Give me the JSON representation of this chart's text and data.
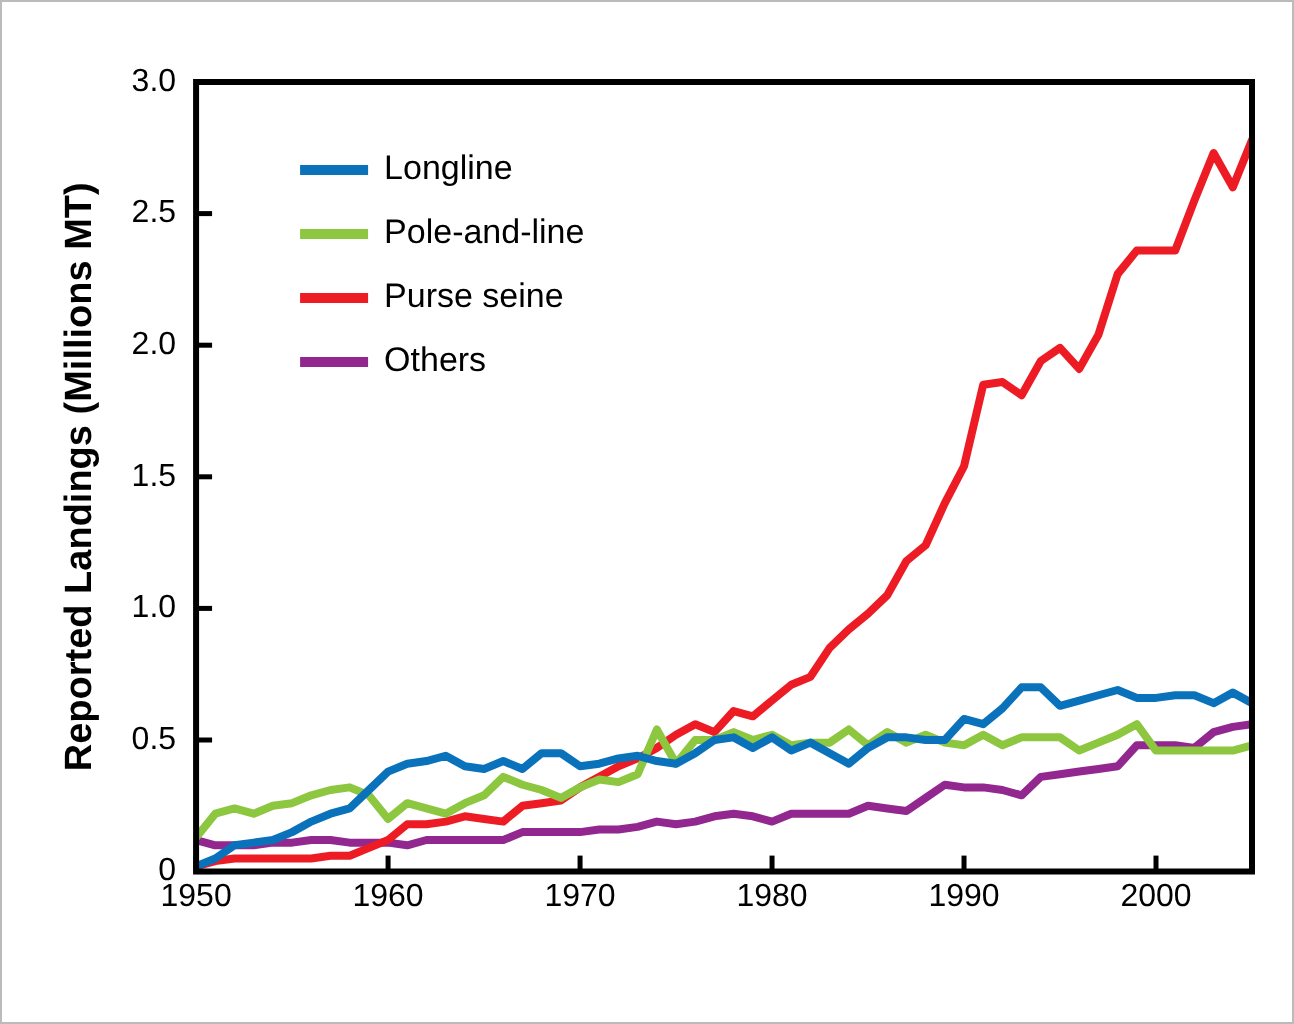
{
  "chart_data": {
    "type": "line",
    "ylabel": "Reported Landings (Millions MT)",
    "x": [
      1950,
      1951,
      1952,
      1953,
      1954,
      1955,
      1956,
      1957,
      1958,
      1959,
      1960,
      1961,
      1962,
      1963,
      1964,
      1965,
      1966,
      1967,
      1968,
      1969,
      1970,
      1971,
      1972,
      1973,
      1974,
      1975,
      1976,
      1977,
      1978,
      1979,
      1980,
      1981,
      1982,
      1983,
      1984,
      1985,
      1986,
      1987,
      1988,
      1989,
      1990,
      1991,
      1992,
      1993,
      1994,
      1995,
      1996,
      1997,
      1998,
      1999,
      2000,
      2001,
      2002,
      2003,
      2004,
      2005
    ],
    "series": [
      {
        "name": "Longline",
        "color": "#0a72ba",
        "values": [
          0.02,
          0.05,
          0.1,
          0.11,
          0.12,
          0.15,
          0.19,
          0.22,
          0.24,
          0.31,
          0.38,
          0.41,
          0.42,
          0.44,
          0.4,
          0.39,
          0.42,
          0.39,
          0.45,
          0.45,
          0.4,
          0.41,
          0.43,
          0.44,
          0.42,
          0.41,
          0.45,
          0.5,
          0.51,
          0.47,
          0.51,
          0.46,
          0.49,
          0.45,
          0.41,
          0.47,
          0.51,
          0.51,
          0.5,
          0.5,
          0.58,
          0.56,
          0.62,
          0.7,
          0.7,
          0.63,
          0.65,
          0.67,
          0.69,
          0.66,
          0.66,
          0.67,
          0.67,
          0.64,
          0.68,
          0.64
        ]
      },
      {
        "name": "Pole-and-line",
        "color": "#8dc63f",
        "values": [
          0.13,
          0.22,
          0.24,
          0.22,
          0.25,
          0.26,
          0.29,
          0.31,
          0.32,
          0.29,
          0.2,
          0.26,
          0.24,
          0.22,
          0.26,
          0.29,
          0.36,
          0.33,
          0.31,
          0.28,
          0.32,
          0.35,
          0.34,
          0.37,
          0.54,
          0.41,
          0.5,
          0.5,
          0.53,
          0.5,
          0.52,
          0.48,
          0.49,
          0.49,
          0.54,
          0.48,
          0.53,
          0.49,
          0.52,
          0.49,
          0.48,
          0.52,
          0.48,
          0.51,
          0.51,
          0.51,
          0.46,
          0.49,
          0.52,
          0.56,
          0.46,
          0.46,
          0.46,
          0.46,
          0.46,
          0.48
        ]
      },
      {
        "name": "Purse seine",
        "color": "#ed1c24",
        "values": [
          0.02,
          0.04,
          0.05,
          0.05,
          0.05,
          0.05,
          0.05,
          0.06,
          0.06,
          0.09,
          0.12,
          0.18,
          0.18,
          0.19,
          0.21,
          0.2,
          0.19,
          0.25,
          0.26,
          0.27,
          0.32,
          0.36,
          0.4,
          0.43,
          0.47,
          0.52,
          0.56,
          0.53,
          0.61,
          0.59,
          0.65,
          0.71,
          0.74,
          0.85,
          0.92,
          0.98,
          1.05,
          1.18,
          1.24,
          1.4,
          1.54,
          1.85,
          1.86,
          1.81,
          1.94,
          1.99,
          1.91,
          2.04,
          2.27,
          2.36,
          2.36,
          2.36,
          2.55,
          2.73,
          2.6,
          2.78
        ]
      },
      {
        "name": "Others",
        "color": "#92278f",
        "values": [
          0.12,
          0.1,
          0.1,
          0.1,
          0.11,
          0.11,
          0.12,
          0.12,
          0.11,
          0.11,
          0.11,
          0.1,
          0.12,
          0.12,
          0.12,
          0.12,
          0.12,
          0.15,
          0.15,
          0.15,
          0.15,
          0.16,
          0.16,
          0.17,
          0.19,
          0.18,
          0.19,
          0.21,
          0.22,
          0.21,
          0.19,
          0.22,
          0.22,
          0.22,
          0.22,
          0.25,
          0.24,
          0.23,
          0.28,
          0.33,
          0.32,
          0.32,
          0.31,
          0.29,
          0.36,
          0.37,
          0.38,
          0.39,
          0.4,
          0.48,
          0.48,
          0.48,
          0.47,
          0.53,
          0.55,
          0.56
        ]
      }
    ],
    "xlim": [
      1950,
      2005
    ],
    "xticks": [
      1950,
      1960,
      1970,
      1980,
      1990,
      2000
    ],
    "ylim": [
      0,
      3
    ],
    "yticks": [
      0,
      0.5,
      {
        "value": 1,
        "label": "1.0"
      },
      1.5,
      {
        "value": 2,
        "label": "2.0"
      },
      2.5,
      {
        "value": 3,
        "label": "3.0"
      }
    ],
    "grid": false,
    "legend": "top left",
    "marker": "none",
    "line_style": "solid"
  }
}
